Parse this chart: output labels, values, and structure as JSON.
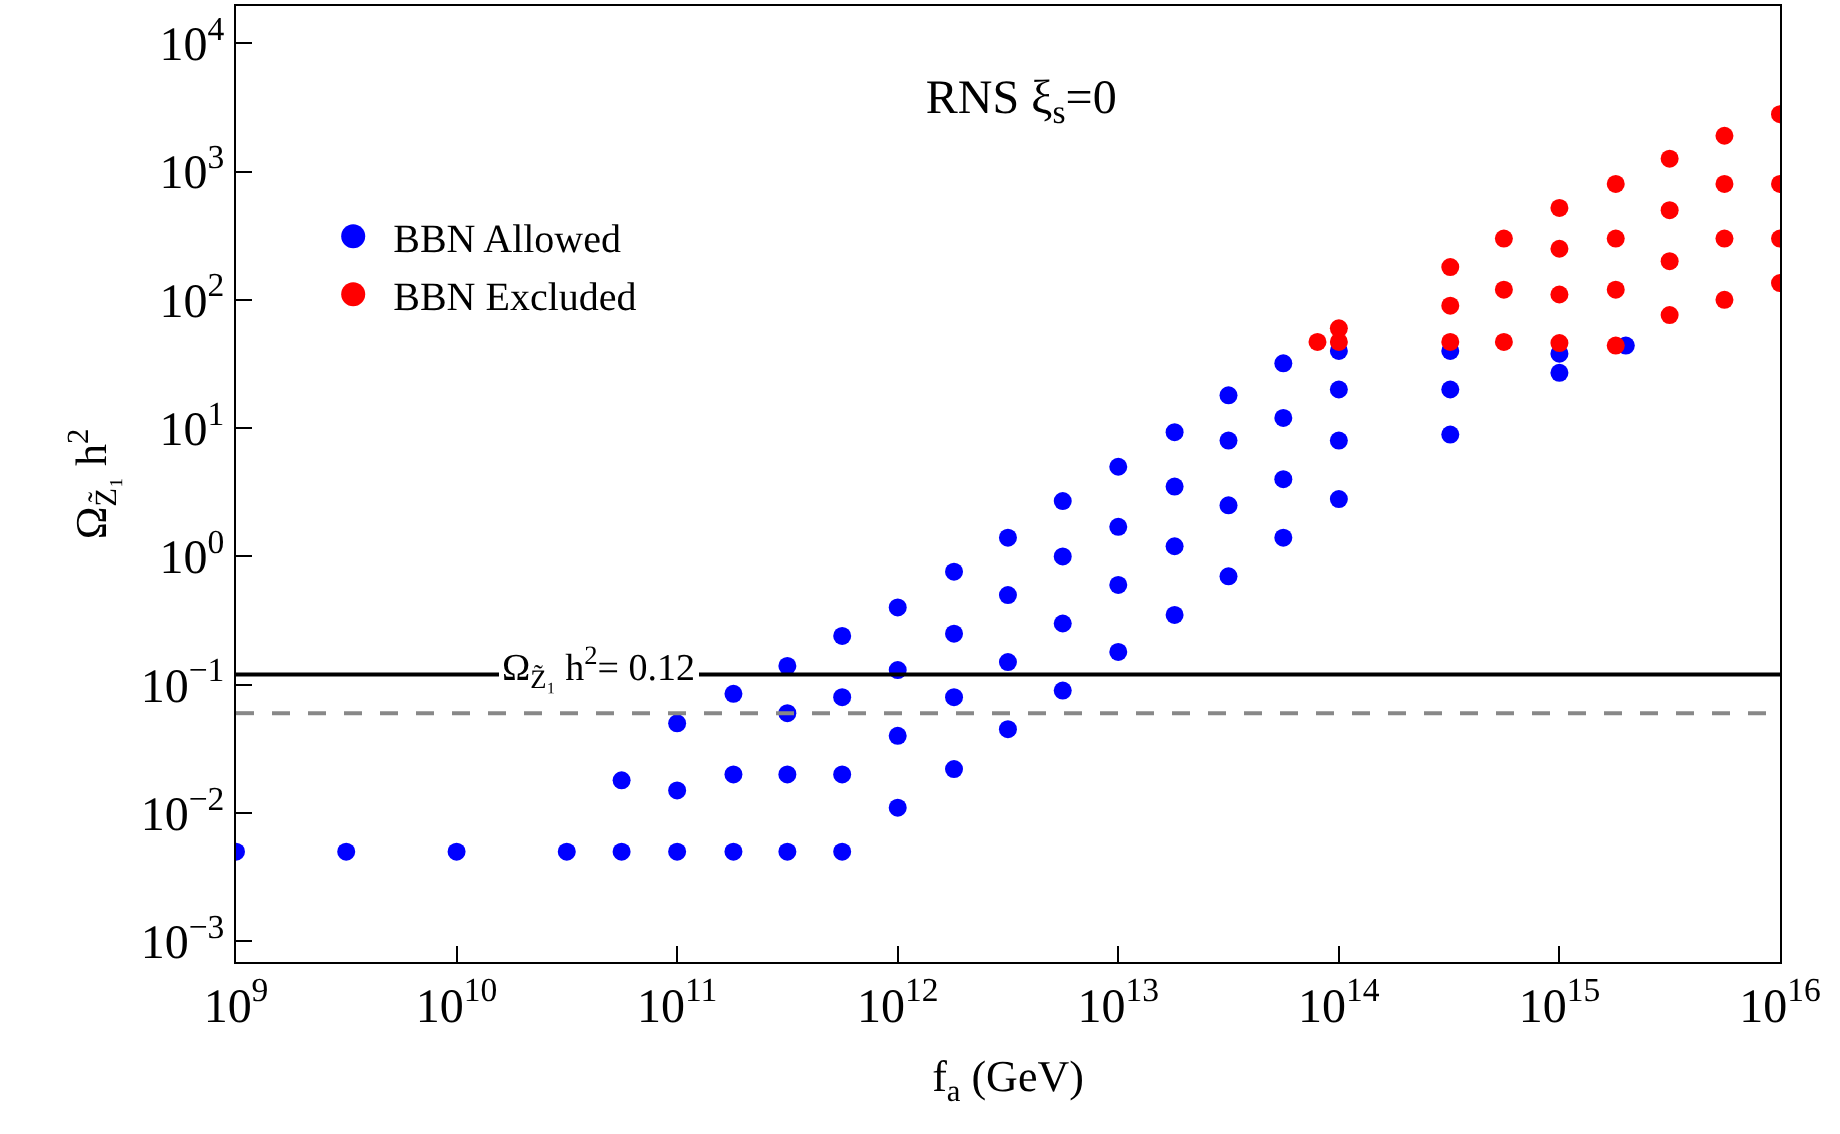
{
  "chart_data": {
    "type": "scatter",
    "title": "RNS ξ$_{s}$=0",
    "xlabel": "f$_{a}$ (GeV)",
    "ylabel": "Ω$_{Z̃₁}$ h$^{2}$",
    "log": "xy",
    "grid": false,
    "legend": "top left",
    "marker": "circle",
    "xlim": [
      1000000000.0,
      1e+16
    ],
    "ylim": [
      0.00069,
      19500
    ],
    "xticks": [
      {
        "value": 1000000000.0,
        "label": "10$^{9}$"
      },
      {
        "value": 10000000000.0,
        "label": "10$^{10}$"
      },
      {
        "value": 100000000000.0,
        "label": "10$^{11}$"
      },
      {
        "value": 1000000000000.0,
        "label": "10$^{12}$"
      },
      {
        "value": 10000000000000.0,
        "label": "10$^{13}$"
      },
      {
        "value": 100000000000000.0,
        "label": "10$^{14}$"
      },
      {
        "value": 1000000000000000.0,
        "label": "10$^{15}$"
      },
      {
        "value": 1e+16,
        "label": "10$^{16}$"
      }
    ],
    "yticks": [
      {
        "value": 0.001,
        "label": "10$^{−3}$"
      },
      {
        "value": 0.01,
        "label": "10$^{−2}$"
      },
      {
        "value": 0.1,
        "label": "10$^{−1}$"
      },
      {
        "value": 1,
        "label": "10$^{0}$"
      },
      {
        "value": 10,
        "label": "10$^{1}$"
      },
      {
        "value": 100,
        "label": "10$^{2}$"
      },
      {
        "value": 1000,
        "label": "10$^{3}$"
      },
      {
        "value": 10000,
        "label": "10$^{4}$"
      }
    ],
    "ref_lines": [
      {
        "axis": "y",
        "value": 0.12,
        "label": "Ω$_{Z̃₁}$ h$^{2}$= 0.12",
        "color": "#000000",
        "line_style": "solid"
      },
      {
        "axis": "y",
        "value": 0.06,
        "label": null,
        "color": "#888888",
        "line_style": "dashed"
      }
    ],
    "series": [
      {
        "name": "BBN Allowed",
        "color": "#0000ff",
        "x": [
          1000000000.0,
          3160000000.0,
          10000000000.0,
          31600000000.0,
          56000000000.0,
          56000000000.0,
          100000000000.0,
          100000000000.0,
          100000000000.0,
          180000000000.0,
          180000000000.0,
          180000000000.0,
          316000000000.0,
          316000000000.0,
          316000000000.0,
          316000000000.0,
          560000000000.0,
          560000000000.0,
          560000000000.0,
          560000000000.0,
          1000000000000.0,
          1000000000000.0,
          1000000000000.0,
          1000000000000.0,
          1800000000000.0,
          1800000000000.0,
          1800000000000.0,
          1800000000000.0,
          3160000000000.0,
          3160000000000.0,
          3160000000000.0,
          3160000000000.0,
          5600000000000.0,
          5600000000000.0,
          5600000000000.0,
          5600000000000.0,
          10000000000000.0,
          10000000000000.0,
          10000000000000.0,
          10000000000000.0,
          18000000000000.0,
          18000000000000.0,
          18000000000000.0,
          18000000000000.0,
          31600000000000.0,
          31600000000000.0,
          31600000000000.0,
          31600000000000.0,
          56000000000000.0,
          56000000000000.0,
          56000000000000.0,
          56000000000000.0,
          100000000000000.0,
          100000000000000.0,
          100000000000000.0,
          100000000000000.0,
          320000000000000.0,
          320000000000000.0,
          320000000000000.0,
          1000000000000000.0,
          1000000000000000.0,
          2000000000000000.0
        ],
        "values": [
          0.005,
          0.005,
          0.005,
          0.005,
          0.005,
          0.018,
          0.005,
          0.015,
          0.05,
          0.005,
          0.02,
          0.085,
          0.005,
          0.02,
          0.06,
          0.14,
          0.005,
          0.02,
          0.08,
          0.24,
          0.011,
          0.04,
          0.13,
          0.4,
          0.022,
          0.08,
          0.25,
          0.76,
          0.045,
          0.15,
          0.5,
          1.4,
          0.09,
          0.3,
          1,
          2.7,
          0.18,
          0.6,
          1.7,
          5,
          0.35,
          1.2,
          3.5,
          9.3,
          0.7,
          2.5,
          8,
          18,
          1.4,
          4,
          12,
          32,
          2.8,
          8,
          20,
          40,
          8.9,
          20,
          40,
          27,
          38,
          44
        ]
      },
      {
        "name": "BBN Excluded",
        "color": "#ff0000",
        "x": [
          80000000000000.0,
          100000000000000.0,
          100000000000000.0,
          320000000000000.0,
          320000000000000.0,
          320000000000000.0,
          560000000000000.0,
          560000000000000.0,
          560000000000000.0,
          1000000000000000.0,
          1000000000000000.0,
          1000000000000000.0,
          1000000000000000.0,
          1800000000000000.0,
          1800000000000000.0,
          1800000000000000.0,
          1800000000000000.0,
          3160000000000000.0,
          3160000000000000.0,
          3160000000000000.0,
          3160000000000000.0,
          5600000000000000.0,
          5600000000000000.0,
          5600000000000000.0,
          5600000000000000.0,
          1e+16,
          1e+16,
          1e+16,
          1e+16
        ],
        "values": [
          47,
          47,
          60,
          47,
          90,
          180,
          47,
          120,
          300,
          46,
          110,
          250,
          520,
          44,
          120,
          300,
          800,
          76,
          200,
          500,
          1260,
          100,
          300,
          800,
          1900,
          135,
          300,
          800,
          2800
        ]
      }
    ]
  }
}
